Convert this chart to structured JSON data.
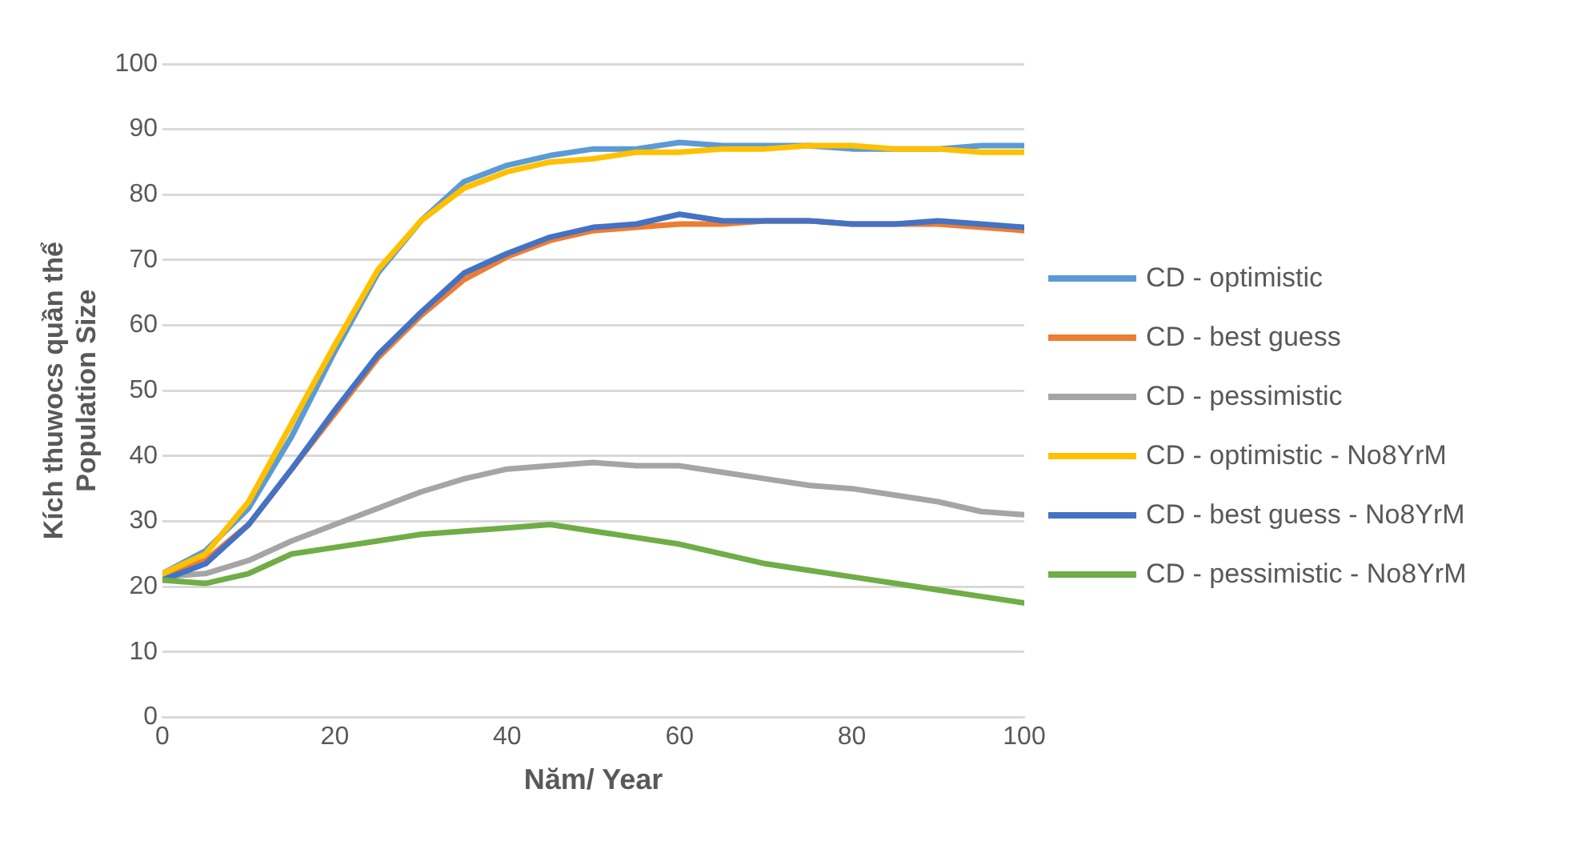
{
  "chart_data": {
    "type": "line",
    "xlabel": "Năm/ Year",
    "ylabel": "Kích thuwocs quần thể\nPopulation Size",
    "x": [
      0,
      5,
      10,
      15,
      20,
      25,
      30,
      35,
      40,
      45,
      50,
      55,
      60,
      65,
      70,
      75,
      80,
      85,
      90,
      95,
      100
    ],
    "xlim": [
      0,
      100
    ],
    "xticks": [
      0,
      20,
      40,
      60,
      80,
      100
    ],
    "ylim": [
      0,
      100
    ],
    "yticks": [
      0,
      10,
      20,
      30,
      40,
      50,
      60,
      70,
      80,
      90,
      100
    ],
    "grid": "y",
    "legend": "right",
    "marker": "none",
    "line_style": "solid",
    "series": [
      {
        "name": "CD - optimistic",
        "color": "#5b9bd5",
        "values": [
          22,
          25.5,
          32,
          43,
          56,
          68,
          76,
          82,
          84.5,
          86,
          87,
          87,
          88,
          87.5,
          87.5,
          87.5,
          87,
          87,
          87,
          87.5,
          87.5
        ]
      },
      {
        "name": "CD - best guess",
        "color": "#ed7d31",
        "values": [
          22,
          24,
          29.5,
          38,
          46.5,
          55,
          61.5,
          67,
          70.5,
          73,
          74.5,
          75,
          75.5,
          75.5,
          76,
          76,
          75.5,
          75.5,
          75.5,
          75,
          74.5
        ]
      },
      {
        "name": "CD - pessimistic",
        "color": "#a5a5a5",
        "values": [
          21.5,
          22,
          24,
          27,
          29.5,
          32,
          34.5,
          36.5,
          38,
          38.5,
          39,
          38.5,
          38.5,
          37.5,
          36.5,
          35.5,
          35,
          34,
          33,
          31.5,
          31
        ]
      },
      {
        "name": "CD - optimistic - No8YrM",
        "color": "#ffc000",
        "values": [
          22,
          25,
          33,
          45,
          57,
          68.5,
          76,
          81,
          83.5,
          85,
          85.5,
          86.5,
          86.5,
          87,
          87,
          87.5,
          87.5,
          87,
          87,
          86.5,
          86.5
        ]
      },
      {
        "name": "CD - best guess - No8YrM",
        "color": "#4472c4",
        "values": [
          21,
          23.5,
          29.5,
          38,
          47,
          55.5,
          62,
          68,
          71,
          73.5,
          75,
          75.5,
          77,
          76,
          76,
          76,
          75.5,
          75.5,
          76,
          75.5,
          75
        ]
      },
      {
        "name": "CD - pessimistic - No8YrM",
        "color": "#70ad47",
        "values": [
          21,
          20.5,
          22,
          25,
          26,
          27,
          28,
          28.5,
          29,
          29.5,
          28.5,
          27.5,
          26.5,
          25,
          23.5,
          22.5,
          21.5,
          20.5,
          19.5,
          18.5,
          17.5
        ]
      }
    ]
  }
}
